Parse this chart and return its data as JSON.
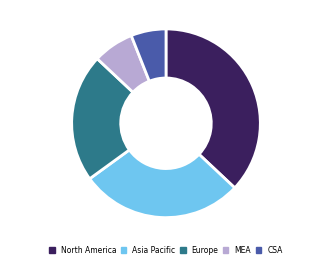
{
  "labels": [
    "North America",
    "Asia Pacific",
    "Europe",
    "MEA",
    "CSA"
  ],
  "values": [
    37,
    28,
    22,
    7,
    6
  ],
  "colors": [
    "#3b1f5e",
    "#6ec6f0",
    "#2d7a8a",
    "#b8a9d4",
    "#4a5baa"
  ],
  "background_color": "#ffffff",
  "wedge_linewidth": 2.0,
  "wedge_linecolor": "#ffffff",
  "donut_width": 0.52,
  "startangle": 90
}
